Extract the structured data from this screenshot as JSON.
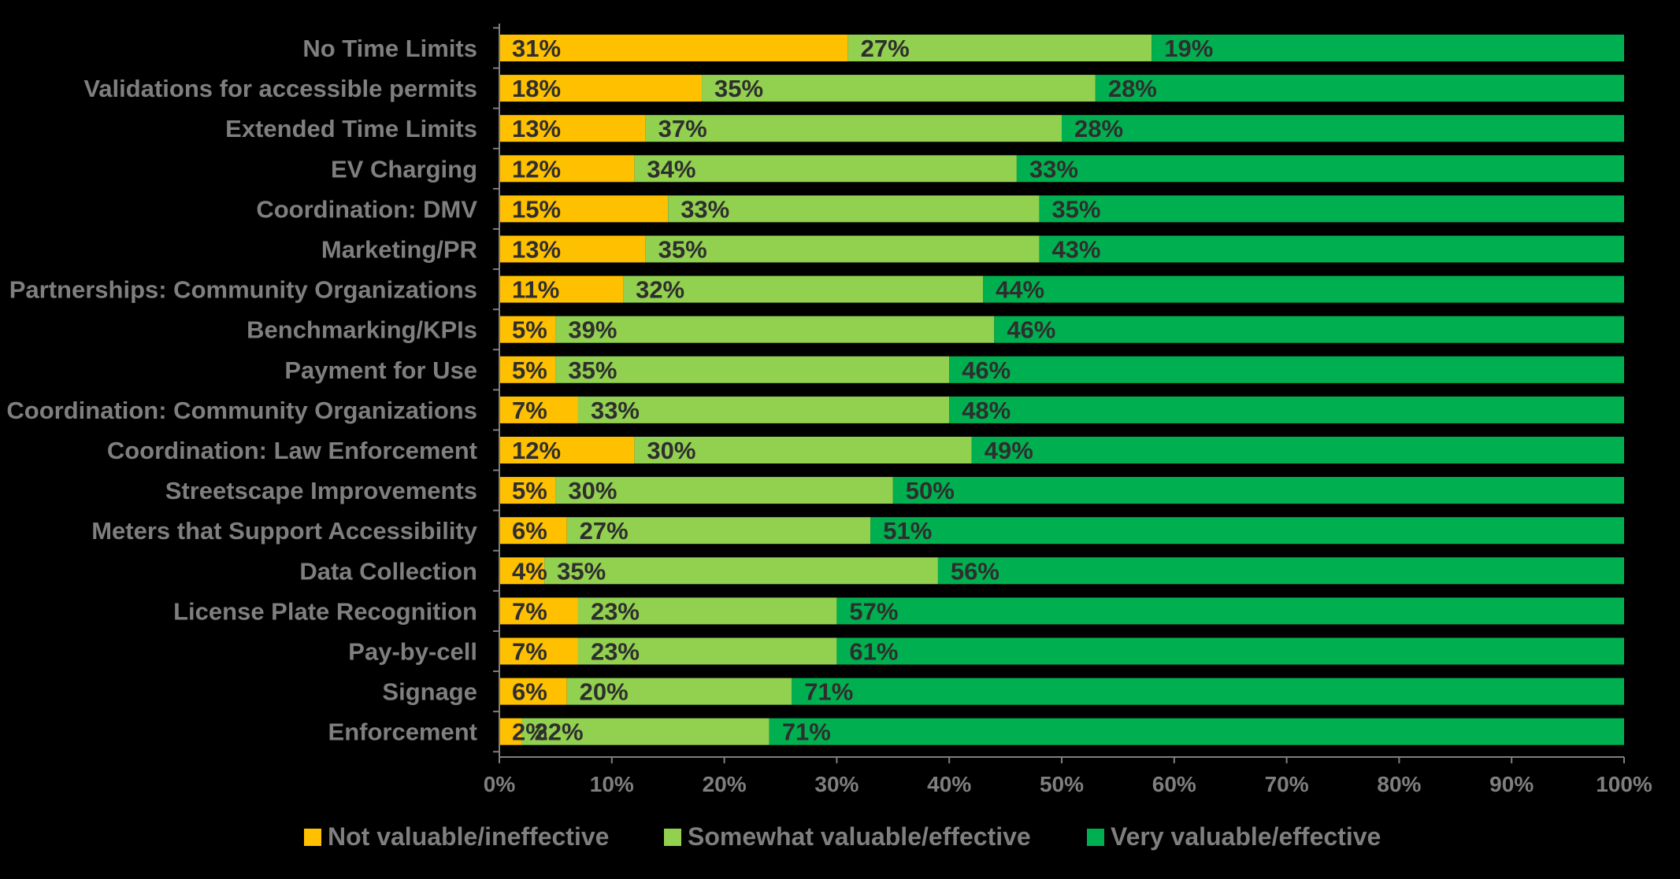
{
  "chart_data": {
    "type": "bar",
    "orientation": "horizontal",
    "stacked": true,
    "percent_stacked": true,
    "title": "",
    "xlabel": "",
    "ylabel": "",
    "xlim": [
      0,
      100
    ],
    "x_ticks": [
      "0%",
      "10%",
      "20%",
      "30%",
      "40%",
      "50%",
      "60%",
      "70%",
      "80%",
      "90%",
      "100%"
    ],
    "categories": [
      "No Time Limits",
      "Validations for accessible permits",
      "Extended Time Limits",
      "EV Charging",
      "Coordination: DMV",
      "Marketing/PR",
      "Partnerships: Community Organizations",
      "Benchmarking/KPIs",
      "Payment for Use",
      "Coordination: Community Organizations",
      "Coordination: Law Enforcement",
      "Streetscape Improvements",
      "Meters that Support Accessibility",
      "Data Collection",
      "License Plate Recognition",
      "Pay-by-cell",
      "Signage",
      "Enforcement"
    ],
    "series": [
      {
        "name": "Not valuable/ineffective",
        "color": "#ffc000",
        "values": [
          31,
          18,
          13,
          12,
          15,
          13,
          11,
          5,
          5,
          7,
          12,
          5,
          6,
          4,
          7,
          7,
          6,
          2
        ],
        "labels": [
          "31%",
          "18%",
          "13%",
          "12%",
          "15%",
          "13%",
          "11%",
          "5%",
          "5%",
          "7%",
          "12%",
          "5%",
          "6%",
          "4%",
          "7%",
          "7%",
          "6%",
          "2%"
        ]
      },
      {
        "name": "Somewhat valuable/effective",
        "color": "#92d050",
        "values": [
          27,
          35,
          37,
          34,
          33,
          35,
          32,
          39,
          35,
          33,
          30,
          30,
          27,
          35,
          23,
          23,
          20,
          22
        ],
        "labels": [
          "27%",
          "35%",
          "37%",
          "34%",
          "33%",
          "35%",
          "32%",
          "39%",
          "35%",
          "33%",
          "30%",
          "30%",
          "27%",
          "35%",
          "23%",
          "23%",
          "20%",
          "22%"
        ]
      },
      {
        "name": "Very valuable/effective",
        "color": "#00b050",
        "values": [
          19,
          28,
          28,
          33,
          35,
          43,
          44,
          46,
          46,
          48,
          49,
          50,
          51,
          56,
          57,
          61,
          71,
          71
        ],
        "labels": [
          "19%",
          "28%",
          "28%",
          "33%",
          "35%",
          "43%",
          "44%",
          "46%",
          "46%",
          "48%",
          "49%",
          "50%",
          "51%",
          "56%",
          "57%",
          "61%",
          "71%",
          "71%"
        ]
      }
    ],
    "legend": {
      "position": "bottom",
      "entries": [
        "Not valuable/ineffective",
        "Somewhat valuable/effective",
        "Very valuable/effective"
      ]
    },
    "grid": false
  },
  "colors": {
    "background": "#000000",
    "axis": "#7f7f7f",
    "label_text": "#7f7f7f",
    "data_label_text": "#2e2e2e"
  }
}
